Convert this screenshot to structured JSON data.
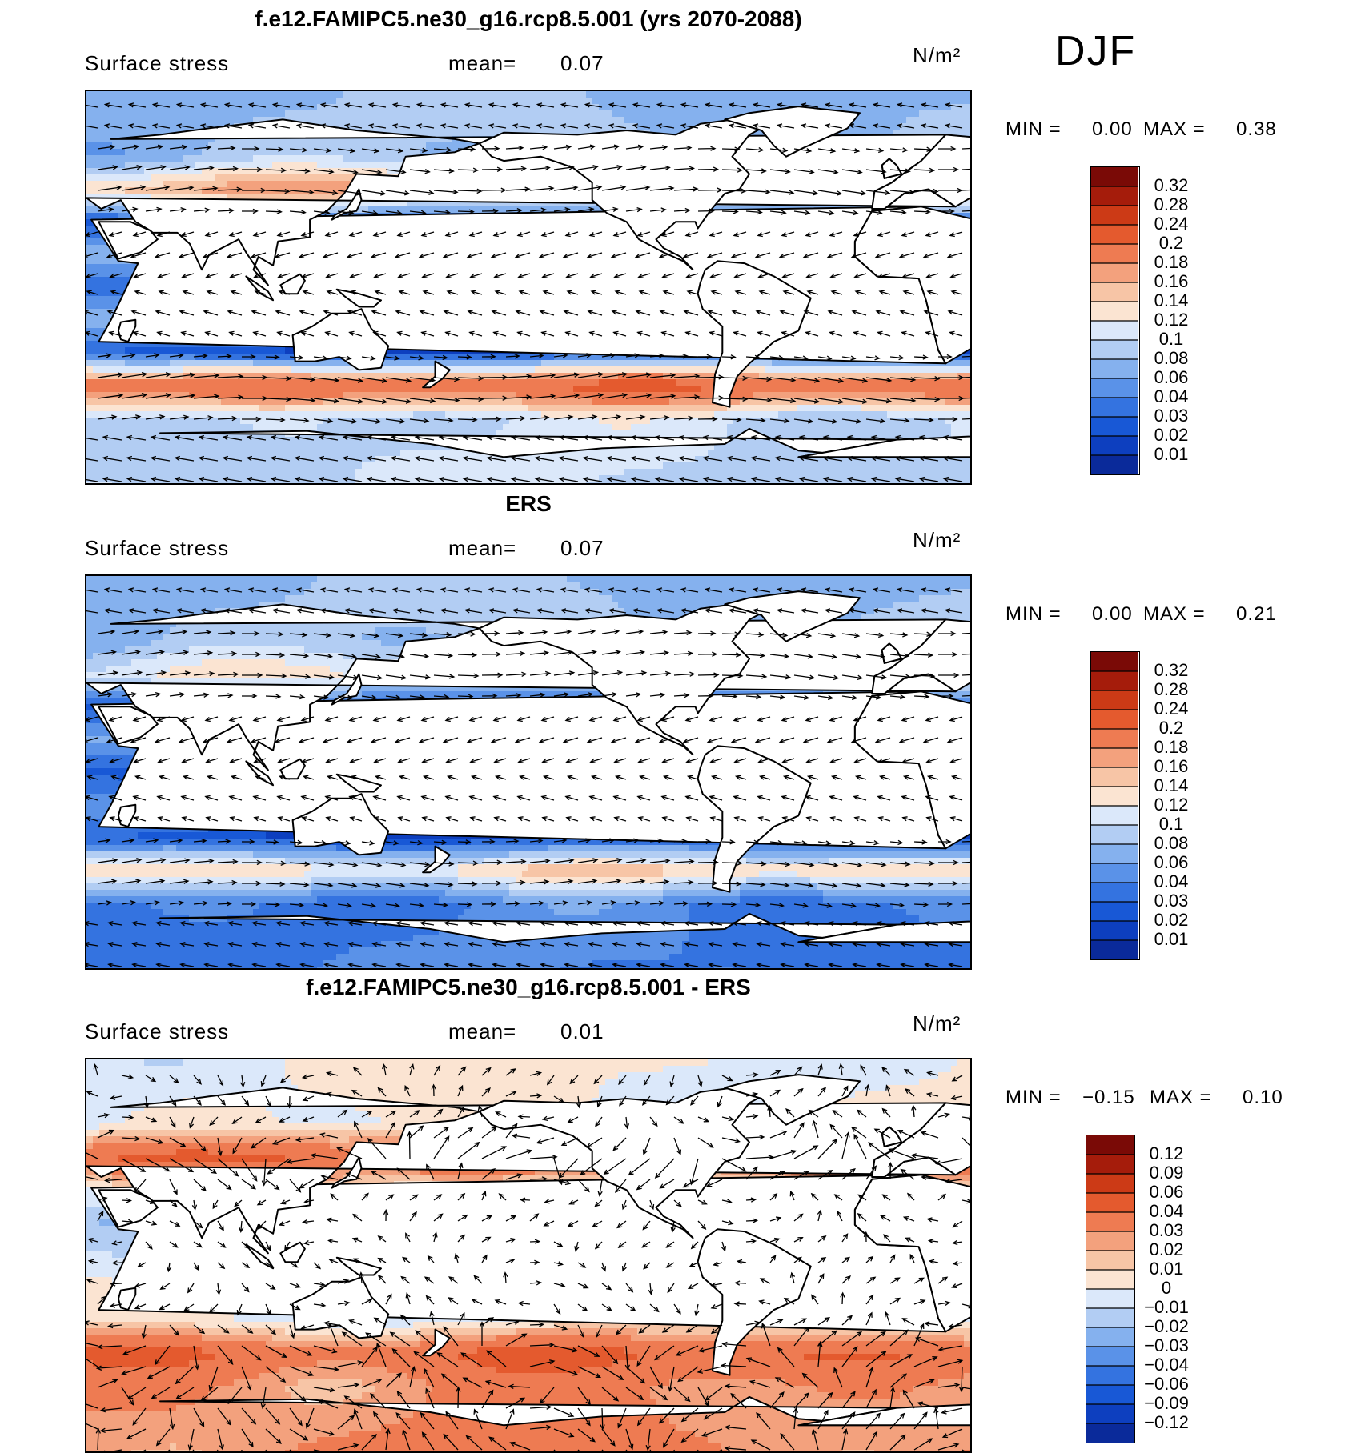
{
  "season": "DJF",
  "colors": {
    "land": "#ffffff",
    "coast": "#000000",
    "arrow": "#000000",
    "stress_scale": [
      "#03157a",
      "#0a2a9a",
      "#0d3fbf",
      "#1858d6",
      "#3473e0",
      "#5a92e8",
      "#85b1ee",
      "#b2cdf3",
      "#dbe8fa",
      "#fbe4d2",
      "#f7c5a6",
      "#f3a17d",
      "#ee7b52",
      "#e45a2e",
      "#cc3a16",
      "#a51c0b",
      "#7a0a06"
    ],
    "diff_scale": [
      "#03157a",
      "#0a2a9a",
      "#0d3fbf",
      "#1858d6",
      "#3473e0",
      "#5a92e8",
      "#85b1ee",
      "#b2cdf3",
      "#dbe8fa",
      "#fbe4d2",
      "#f7c5a6",
      "#f3a17d",
      "#ee7b52",
      "#e45a2e",
      "#cc3a16",
      "#a51c0b",
      "#7a0a06"
    ]
  },
  "panels": [
    {
      "title": "f.e12.FAMIPC5.ne30_g16.rcp8.5.001 (yrs 2070-2088)",
      "variable": "Surface stress",
      "mean_label": "mean=",
      "mean_value": "0.07",
      "units": "N/m²",
      "min_label": "MIN =",
      "min_value": "0.00",
      "max_label": "MAX =",
      "max_value": "0.38",
      "colorbar_labels": [
        "0.32",
        "0.28",
        "0.24",
        "0.2",
        "0.18",
        "0.16",
        "0.14",
        "0.12",
        "0.1",
        "0.08",
        "0.06",
        "0.04",
        "0.03",
        "0.02",
        "0.01"
      ]
    },
    {
      "title": "ERS",
      "variable": "Surface stress",
      "mean_label": "mean=",
      "mean_value": "0.07",
      "units": "N/m²",
      "min_label": "MIN =",
      "min_value": "0.00",
      "max_label": "MAX =",
      "max_value": "0.21",
      "colorbar_labels": [
        "0.32",
        "0.28",
        "0.24",
        "0.2",
        "0.18",
        "0.16",
        "0.14",
        "0.12",
        "0.1",
        "0.08",
        "0.06",
        "0.04",
        "0.03",
        "0.02",
        "0.01"
      ]
    },
    {
      "title": "f.e12.FAMIPC5.ne30_g16.rcp8.5.001 - ERS",
      "variable": "Surface stress",
      "mean_label": "mean=",
      "mean_value": "0.01",
      "units": "N/m²",
      "min_label": "MIN =",
      "min_value": "−0.15",
      "max_label": "MAX =",
      "max_value": "0.10",
      "colorbar_labels": [
        "0.12",
        "0.09",
        "0.06",
        "0.04",
        "0.03",
        "0.02",
        "0.01",
        "0",
        "−0.01",
        "−0.02",
        "−0.03",
        "−0.04",
        "−0.06",
        "−0.09",
        "−0.12"
      ]
    }
  ],
  "chart_data": [
    {
      "type": "heatmap",
      "title": "f.e12.FAMIPC5.ne30_g16.rcp8.5.001 (yrs 2070-2088)",
      "variable": "Surface stress",
      "units": "N/m²",
      "mean": 0.07,
      "min": 0.0,
      "max": 0.38,
      "season": "DJF",
      "levels": [
        0.01,
        0.02,
        0.03,
        0.04,
        0.06,
        0.08,
        0.1,
        0.12,
        0.14,
        0.16,
        0.18,
        0.2,
        0.24,
        0.28,
        0.32
      ],
      "overlay": "wind stress vectors",
      "zonal_band_values": [
        {
          "lat": 60,
          "value": 0.1
        },
        {
          "lat": 45,
          "value": 0.18
        },
        {
          "lat": 30,
          "value": 0.04
        },
        {
          "lat": 15,
          "value": 0.08
        },
        {
          "lat": 0,
          "value": 0.02
        },
        {
          "lat": -15,
          "value": 0.08
        },
        {
          "lat": -30,
          "value": 0.03
        },
        {
          "lat": -45,
          "value": 0.24
        },
        {
          "lat": -60,
          "value": 0.12
        }
      ]
    },
    {
      "type": "heatmap",
      "title": "ERS",
      "variable": "Surface stress",
      "units": "N/m²",
      "mean": 0.07,
      "min": 0.0,
      "max": 0.21,
      "season": "DJF",
      "levels": [
        0.01,
        0.02,
        0.03,
        0.04,
        0.06,
        0.08,
        0.1,
        0.12,
        0.14,
        0.16,
        0.18,
        0.2,
        0.24,
        0.28,
        0.32
      ],
      "overlay": "wind stress vectors",
      "zonal_band_values": [
        {
          "lat": 60,
          "value": 0.1
        },
        {
          "lat": 45,
          "value": 0.14
        },
        {
          "lat": 30,
          "value": 0.04
        },
        {
          "lat": 15,
          "value": 0.08
        },
        {
          "lat": 0,
          "value": 0.02
        },
        {
          "lat": -15,
          "value": 0.06
        },
        {
          "lat": -30,
          "value": 0.03
        },
        {
          "lat": -45,
          "value": 0.16
        },
        {
          "lat": -60,
          "value": 0.06
        }
      ]
    },
    {
      "type": "heatmap",
      "title": "f.e12.FAMIPC5.ne30_g16.rcp8.5.001 - ERS",
      "variable": "Surface stress",
      "units": "N/m²",
      "mean": 0.01,
      "min": -0.15,
      "max": 0.1,
      "season": "DJF",
      "levels": [
        -0.12,
        -0.09,
        -0.06,
        -0.04,
        -0.03,
        -0.02,
        -0.01,
        0,
        0.01,
        0.02,
        0.03,
        0.04,
        0.06,
        0.09,
        0.12
      ],
      "overlay": "wind stress difference vectors",
      "zonal_band_values": [
        {
          "lat": 60,
          "value": 0.01
        },
        {
          "lat": 45,
          "value": 0.06
        },
        {
          "lat": 30,
          "value": 0.01
        },
        {
          "lat": 15,
          "value": -0.01
        },
        {
          "lat": 0,
          "value": 0.0
        },
        {
          "lat": -15,
          "value": 0.01
        },
        {
          "lat": -30,
          "value": 0.01
        },
        {
          "lat": -45,
          "value": 0.06
        },
        {
          "lat": -60,
          "value": 0.04
        }
      ]
    }
  ]
}
